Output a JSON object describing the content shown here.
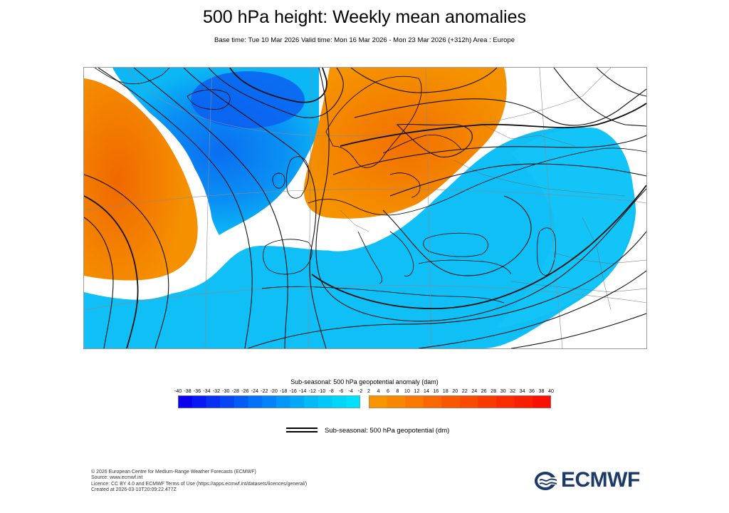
{
  "header": {
    "title": "500 hPa height: Weekly mean anomalies",
    "subtitle": "Base time: Tue 10 Mar 2026 Valid time: Mon 16 Mar 2026 - Mon 23 Mar 2026 (+312h) Area : Europe"
  },
  "map": {
    "area": "Europe",
    "fill_field": "Sub-seasonal: 500 hPa geopotential anomaly (dam)",
    "contour_field": "Sub-seasonal: 500 hPa geopotential (dm)",
    "anomaly_regions": [
      {
        "location": "mid-Atlantic west",
        "sign": "positive",
        "color": "#f58a00"
      },
      {
        "location": "Iceland / Greenland Sea",
        "sign": "negative",
        "color": "#0a7cf0"
      },
      {
        "location": "Scandinavia / Baltic / UK",
        "sign": "positive",
        "color": "#f58a00"
      },
      {
        "location": "Iberia / Mediterranean / North Africa / Russia",
        "sign": "negative",
        "color": "#0bb8f5"
      }
    ]
  },
  "colorbar": {
    "title": "Sub-seasonal: 500 hPa geopotential anomaly (dam)",
    "negative_ticks": [
      "-40",
      "-38",
      "-36",
      "-34",
      "-32",
      "-30",
      "-28",
      "-26",
      "-24",
      "-22",
      "-20",
      "-18",
      "-16",
      "-14",
      "-12",
      "-10",
      "-8",
      "-6",
      "-4",
      "-2"
    ],
    "positive_ticks": [
      "2",
      "4",
      "6",
      "8",
      "10",
      "12",
      "14",
      "16",
      "18",
      "20",
      "22",
      "24",
      "26",
      "28",
      "30",
      "32",
      "34",
      "36",
      "38",
      "40"
    ],
    "negative_colors": [
      "#0a00f0",
      "#0818f2",
      "#0730f4",
      "#0646f4",
      "#055cf5",
      "#0470f5",
      "#0384f6",
      "#0296f6",
      "#01a8f7",
      "#00baf7",
      "#00c8f8",
      "#00d6f9",
      "#00e0fa"
    ],
    "positive_colors": [
      "#f89400",
      "#f88600",
      "#f87800",
      "#f86800",
      "#f85800",
      "#f84a00",
      "#f83a00",
      "#f82c00",
      "#f81e00",
      "#f81000"
    ]
  },
  "legend": {
    "line_label": "Sub-seasonal: 500 hPa geopotential (dm)"
  },
  "footer": {
    "line1": "© 2026 European Centre for Medium-Range Weather Forecasts (ECMWF)",
    "line2": "Source: www.ecmwf.int",
    "line3": "Licence: CC BY 4.0 and ECMWF Terms of Use (https://apps.ecmwf.int/datasets/licences/general/)",
    "line4": "Created at 2026-03-10T20:09:22.477Z"
  },
  "logo": {
    "text": "ECMWF",
    "color": "#1d3b68"
  }
}
